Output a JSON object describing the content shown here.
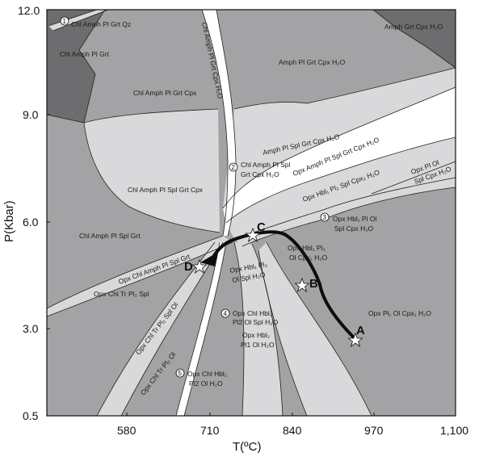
{
  "axes": {
    "x_title": "T(ºC)",
    "y_title": "P(Kbar)",
    "x_ticks": [
      "580",
      "710",
      "840",
      "970",
      "1,100"
    ],
    "y_ticks": [
      "12.0",
      "9.0",
      "6.0",
      "3.0",
      "0.5"
    ]
  },
  "fields": {
    "f1": "Chl Amph Pl Grt Qz",
    "f2": "Chl Amph Pl Grt",
    "f3": "Chl Amph Pl Grt Cpx",
    "f4": "Chl Amph Pl Grt Cpx H₂O",
    "f5": "Amph Pl Grt Cpx H₂O",
    "f6": "Amph Grt Cpx H₂O",
    "f7": "Chl Amph Pl Spl Grt Cpx",
    "f8": "Amph Pl Spl Grt Cpx H₂O",
    "f9": "Chl Amph Pl Spl",
    "f10": "Grt Cpx H₂O",
    "f11": "Opx Amph Pl Spl Grt Cpx H₂O",
    "f12": "Opx Hbl₁ Pl₂ Spl Cpx₂ H₂O",
    "f13": "Opx Pl Ol",
    "f14": "Spl Cpx H₂O",
    "f15": "Chl Amph Pl Spl Grt",
    "f16": "Opx Hbl₁ Pl Ol",
    "f17": "Spl Cpx H₂O",
    "f18": "Opx Chl Amph Pl Spl Grt",
    "f19": "Opx Hbl₁ Pl₂",
    "f20": "Ol Cpx₁ H₂O",
    "f21": "Opx Hbl₁ Pl₃",
    "f22": "Ol Spl H₂O",
    "f23": "Opx Chl Tr Pl₂ Spl",
    "f24": "Opx Chl Hbl₂",
    "f25": "Pl2 Ol Spl H₂O",
    "f26": "Opx Hbl₂",
    "f27": "Pl1 Ol H₂O",
    "f28": "Opx Chl Tr Pl₂ Spl Ol",
    "f29": "Opx Chl Tr Pl₂ Ol",
    "f30": "Opx Chl Hbl₂",
    "f31": "Pl2 Ol H₂O",
    "f32": "Opx Pl₁ Ol Cpx₁ H₂O"
  },
  "reaction_numbers": [
    "1",
    "2",
    "3",
    "4",
    "5"
  ],
  "points": [
    "A",
    "B",
    "C",
    "D"
  ],
  "colors": {
    "dark": "#6d6d6f",
    "medium": "#a3a3a5",
    "light": "#d9d9db",
    "white": "#ffffff",
    "path": "#0d0d0d"
  }
}
